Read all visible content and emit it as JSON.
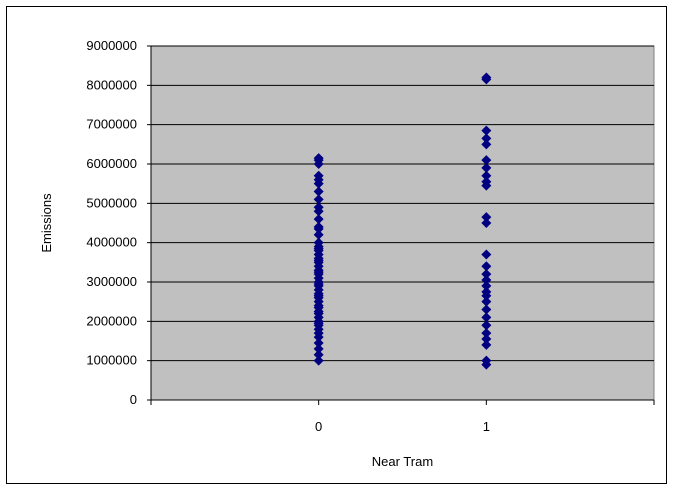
{
  "chart_data": {
    "type": "scatter",
    "title": "",
    "xlabel": "Near Tram",
    "ylabel": "Emissions",
    "xlim": [
      -1,
      2
    ],
    "ylim": [
      0,
      9000000
    ],
    "x_ticks": [
      "0",
      "1"
    ],
    "y_ticks": [
      "0",
      "1000000",
      "2000000",
      "3000000",
      "4000000",
      "5000000",
      "6000000",
      "7000000",
      "8000000",
      "9000000"
    ],
    "grid": true,
    "legend": "none",
    "colors": {
      "plot_bg": "#c0c0c0",
      "marker": "#000080",
      "grid": "#000000"
    },
    "series": [
      {
        "x": [
          0,
          0,
          0,
          0,
          0,
          0,
          0,
          0,
          0,
          0,
          0,
          0,
          0,
          0,
          0,
          0,
          0,
          0,
          0,
          0,
          0,
          0,
          0,
          0,
          0,
          0,
          0,
          0,
          0,
          0,
          0,
          0,
          0,
          0,
          0,
          0,
          0,
          0,
          0,
          0,
          0,
          0,
          0,
          0,
          0,
          0,
          0,
          0,
          0,
          0
        ],
        "y": [
          1000000,
          1150000,
          1300000,
          1450000,
          1600000,
          1700000,
          1800000,
          1900000,
          1950000,
          2000000,
          2100000,
          2200000,
          2250000,
          2350000,
          2400000,
          2500000,
          2600000,
          2650000,
          2700000,
          2800000,
          2900000,
          2950000,
          3000000,
          3100000,
          3200000,
          3250000,
          3300000,
          3400000,
          3500000,
          3550000,
          3600000,
          3700000,
          3800000,
          3850000,
          3900000,
          4000000,
          4200000,
          4350000,
          4400000,
          4600000,
          4800000,
          4900000,
          5100000,
          5300000,
          5500000,
          5600000,
          5700000,
          6000000,
          6100000,
          6150000
        ]
      },
      {
        "x": [
          1,
          1,
          1,
          1,
          1,
          1,
          1,
          1,
          1,
          1,
          1,
          1,
          1,
          1,
          1,
          1,
          1,
          1,
          1,
          1,
          1,
          1,
          1,
          1,
          1,
          1,
          1,
          1
        ],
        "y": [
          900000,
          1000000,
          1400000,
          1550000,
          1700000,
          1900000,
          2100000,
          2300000,
          2500000,
          2650000,
          2750000,
          2900000,
          3050000,
          3200000,
          3400000,
          3700000,
          4500000,
          4650000,
          5450000,
          5550000,
          5700000,
          5900000,
          6100000,
          6500000,
          6650000,
          6850000,
          8150000,
          8200000
        ]
      }
    ]
  }
}
